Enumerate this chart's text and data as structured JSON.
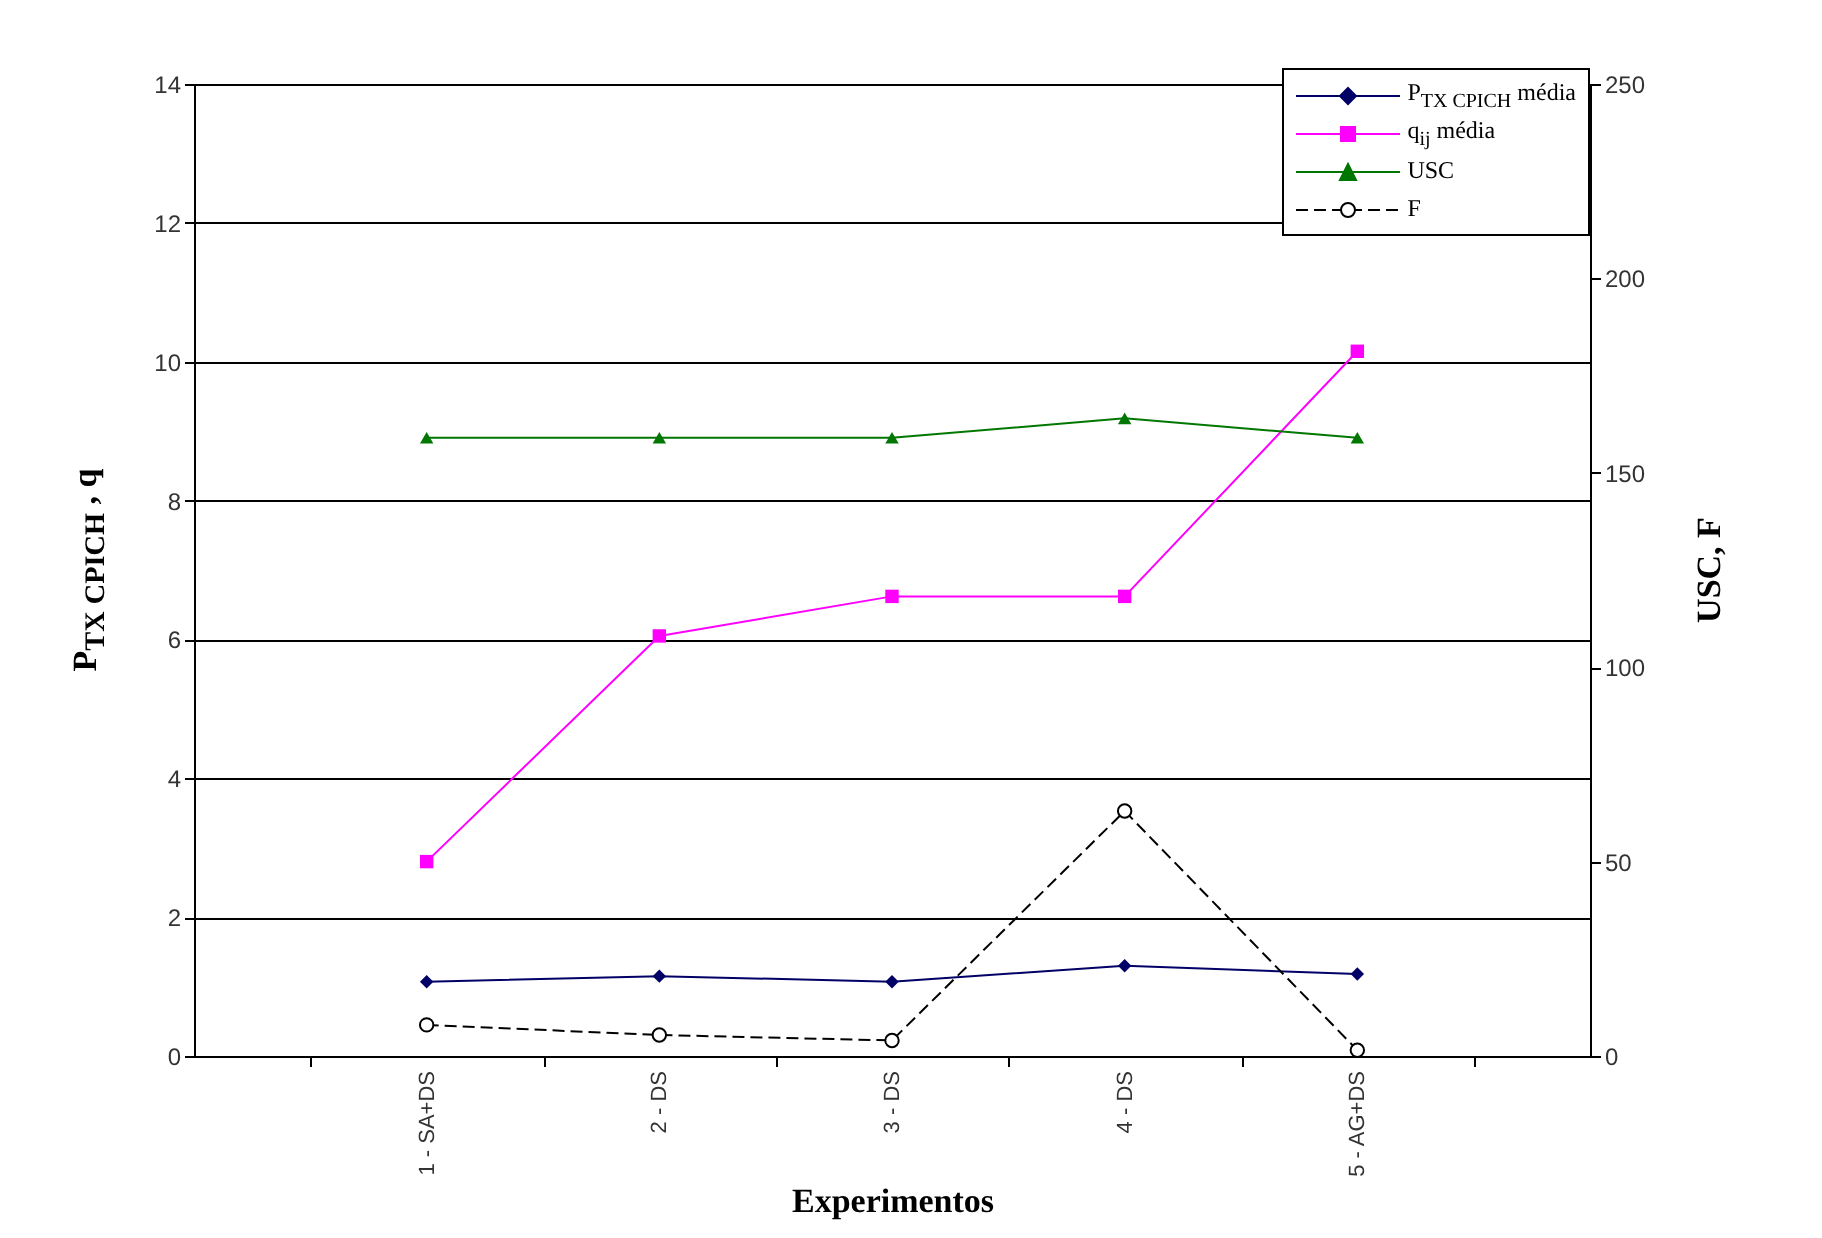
{
  "chart_data": {
    "type": "line",
    "categories": [
      "1 - SA+DS",
      "2 - DS",
      "3 - DS",
      "4 - DS",
      "5 - AG+DS"
    ],
    "xlabel": "Experimentos",
    "ylabel": "P$_{TX CPICH}$ , q",
    "y2label": "USC, F",
    "ylim": [
      0,
      14
    ],
    "yticks": [
      0,
      2,
      4,
      6,
      8,
      10,
      12,
      14
    ],
    "y2lim": [
      0,
      250
    ],
    "y2ticks": [
      0,
      50,
      100,
      150,
      200,
      250
    ],
    "grid": "y",
    "legend": "top right",
    "series": [
      {
        "name": "P$_{TX CPICH}$ média",
        "color": "#000066",
        "marker": "diamond",
        "line_style": "solid",
        "values": [
          1.07,
          1.15,
          1.07,
          1.3,
          1.18
        ]
      },
      {
        "name": "q$_{ij}$ média",
        "color": "#ff00ff",
        "marker": "square",
        "line_style": "solid",
        "values": [
          2.8,
          6.05,
          6.62,
          6.62,
          10.15
        ]
      },
      {
        "name": "USC",
        "color": "#007700",
        "marker": "triangle",
        "line_style": "solid",
        "axis": "y2",
        "values": [
          159,
          159,
          159,
          164,
          159
        ]
      },
      {
        "name": "F",
        "color": "#000000",
        "marker": "circle",
        "line_style": "dashed",
        "axis": "y2",
        "values": [
          8,
          5.4,
          4,
          63,
          1.5
        ]
      }
    ]
  }
}
